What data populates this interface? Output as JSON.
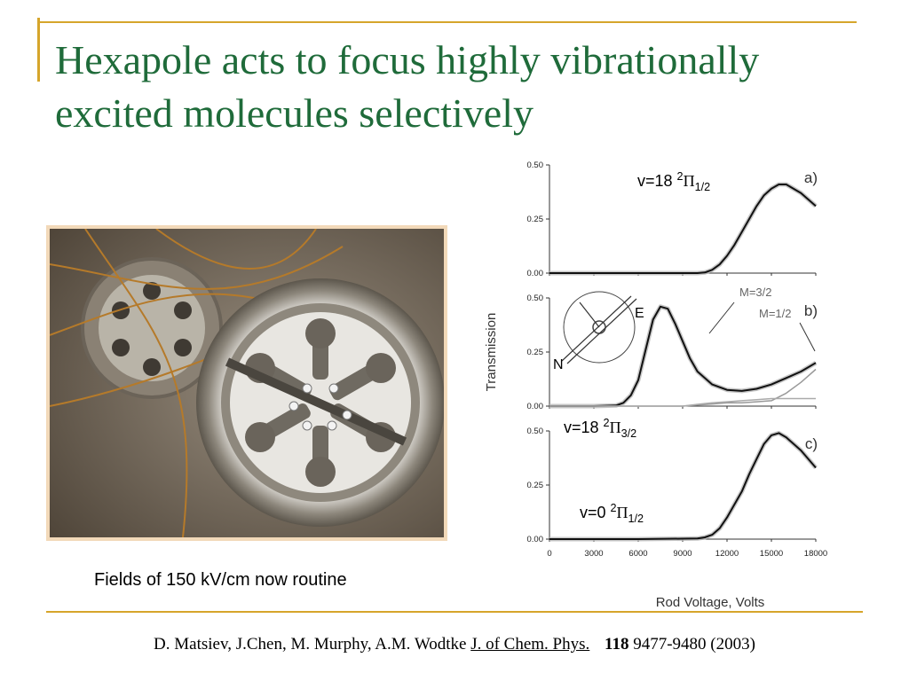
{
  "slide": {
    "title": "Hexapole acts to focus highly vibrationally excited molecules selectively",
    "caption": "Fields of 150 kV/cm now routine",
    "citation": {
      "authors": "D. Matsiev, J.Chen, M. Murphy, A.M. Wodtke",
      "journal": "J. of Chem. Phys.",
      "volume": "118",
      "pages_year": "9477-9480 (2003)"
    },
    "accent_color": "#d6a52b",
    "title_color": "#1f6b3a"
  },
  "photo": {
    "description_icon": "hexapole-photo"
  },
  "chart_data": {
    "type": "line",
    "xlabel": "Rod Voltage, Volts",
    "ylabel": "Transmission",
    "xlim": [
      0,
      18000
    ],
    "x_ticks": [
      "0",
      "3000",
      "6000",
      "9000",
      "12000",
      "15000",
      "18000"
    ],
    "ylim": [
      0,
      0.5
    ],
    "y_ticks": [
      "0.00",
      "0.25",
      "0.50"
    ],
    "panels": [
      {
        "label": "a)",
        "state": {
          "pre": "v=18 ",
          "sup": "2",
          "sym": "Π",
          "sub": "1/2"
        },
        "series": [
          {
            "x": [
              0,
              3000,
              6000,
              9000,
              10000,
              10500,
              11000,
              11500,
              12000,
              12500,
              13000,
              13500,
              14000,
              14500,
              15000,
              15500,
              16000,
              17000,
              18000
            ],
            "y": [
              0,
              0,
              0,
              0,
              0,
              0.003,
              0.015,
              0.04,
              0.08,
              0.13,
              0.19,
              0.25,
              0.31,
              0.36,
              0.39,
              0.41,
              0.41,
              0.37,
              0.31
            ]
          }
        ]
      },
      {
        "label": "b)",
        "state": {
          "pre": "v=18 ",
          "sup": "2",
          "sym": "Π",
          "sub": "3/2"
        },
        "annotations": [
          "M=3/2",
          "M=1/2"
        ],
        "inset": {
          "E": "E",
          "N": "N"
        },
        "series": [
          {
            "x": [
              0,
              3000,
              4500,
              5000,
              5500,
              6000,
              6500,
              7000,
              7500,
              8000,
              8500,
              9000,
              9500,
              10000,
              11000,
              12000,
              13000,
              14000,
              15000,
              16000,
              17000,
              18000
            ],
            "y": [
              0,
              0,
              0.003,
              0.015,
              0.05,
              0.12,
              0.26,
              0.4,
              0.46,
              0.45,
              0.38,
              0.3,
              0.22,
              0.16,
              0.1,
              0.075,
              0.07,
              0.08,
              0.1,
              0.13,
              0.16,
              0.2
            ]
          },
          {
            "x": [
              0,
              9000,
              10000,
              11000,
              12000,
              13000,
              14000,
              15000,
              16000,
              17000,
              18000
            ],
            "y": [
              0,
              0,
              0.005,
              0.01,
              0.015,
              0.015,
              0.02,
              0.025,
              0.06,
              0.11,
              0.17
            ]
          },
          {
            "x": [
              0,
              9000,
              10000,
              11000,
              12000,
              13000,
              14000,
              15000,
              16000,
              17000,
              18000
            ],
            "y": [
              0,
              0,
              0.008,
              0.015,
              0.02,
              0.025,
              0.03,
              0.035,
              0.035,
              0.035,
              0.035
            ]
          }
        ]
      },
      {
        "label": "c)",
        "state": {
          "pre": "v=0 ",
          "sup": "2",
          "sym": "Π",
          "sub": "1/2"
        },
        "series": [
          {
            "x": [
              0,
              3000,
              6000,
              9000,
              10000,
              10500,
              11000,
              11500,
              12000,
              12500,
              13000,
              13500,
              14000,
              14500,
              15000,
              15500,
              16000,
              17000,
              18000
            ],
            "y": [
              0,
              0,
              0,
              0.002,
              0.003,
              0.008,
              0.02,
              0.05,
              0.1,
              0.16,
              0.22,
              0.3,
              0.37,
              0.44,
              0.48,
              0.49,
              0.47,
              0.41,
              0.33
            ]
          }
        ]
      }
    ]
  }
}
